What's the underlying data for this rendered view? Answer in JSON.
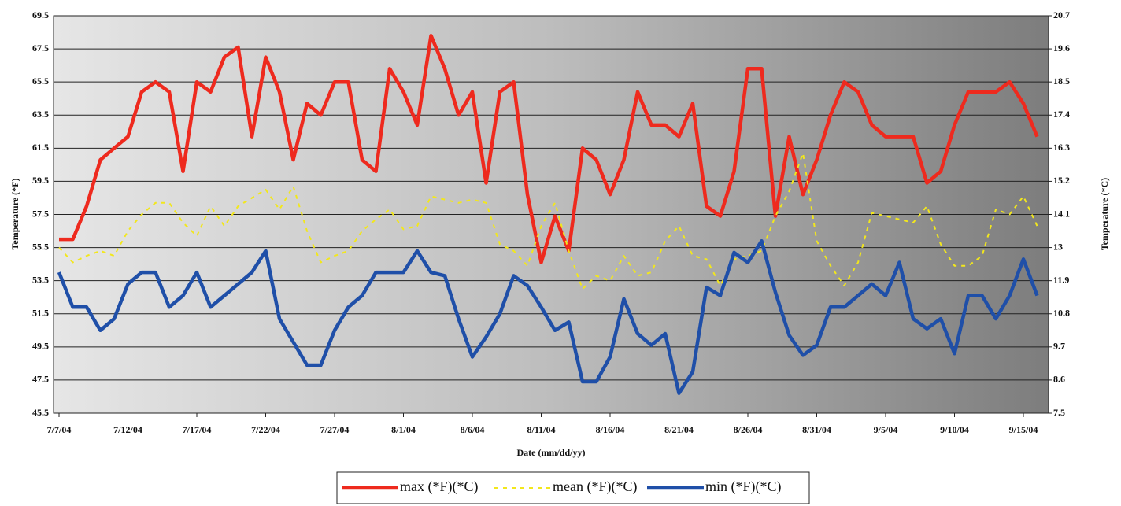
{
  "chart_data": {
    "type": "line",
    "xlabel": "Date (mm/dd/yy)",
    "ylabel": "Temperature (*F)",
    "y2label": "Temperature (*C)",
    "categories": [
      "7/7/04",
      null,
      null,
      null,
      null,
      "7/12/04",
      null,
      null,
      null,
      null,
      "7/17/04",
      null,
      null,
      null,
      null,
      "7/22/04",
      null,
      null,
      null,
      null,
      "7/27/04",
      null,
      null,
      null,
      null,
      "8/1/04",
      null,
      null,
      null,
      null,
      "8/6/04",
      null,
      null,
      null,
      null,
      "8/11/04",
      null,
      null,
      null,
      null,
      "8/16/04",
      null,
      null,
      null,
      null,
      "8/21/04",
      null,
      null,
      null,
      null,
      "8/26/04",
      null,
      null,
      null,
      null,
      "8/31/04",
      null,
      null,
      null,
      null,
      "9/5/04",
      null,
      null,
      null,
      null,
      "9/10/04",
      null,
      null,
      null,
      null,
      "9/15/04",
      null
    ],
    "series": [
      {
        "name": "max (*F)(*C)",
        "color": "#ee2a1e",
        "values": [
          56,
          56,
          58,
          60.8,
          61.5,
          62.2,
          64.9,
          65.5,
          64.9,
          60.1,
          65.5,
          64.9,
          67,
          67.6,
          62.2,
          67,
          64.9,
          60.8,
          64.2,
          63.5,
          65.5,
          65.5,
          60.8,
          60.1,
          66.3,
          64.9,
          62.9,
          68.3,
          66.3,
          63.5,
          64.9,
          59.4,
          64.9,
          65.5,
          58.7,
          54.6,
          57.4,
          55.3,
          61.5,
          60.8,
          58.7,
          60.8,
          64.9,
          62.9,
          62.9,
          62.2,
          64.2,
          58,
          57.4,
          60.1,
          66.3,
          66.3,
          57.4,
          62.2,
          58.7,
          60.8,
          63.5,
          65.5,
          64.9,
          62.9,
          62.2,
          62.2,
          62.2,
          59.4,
          60.1,
          62.9,
          64.9,
          64.9,
          64.9,
          65.5,
          64.2,
          62.2
        ]
      },
      {
        "name": "mean (*F)(*C)",
        "color": "#f2e71c",
        "values": [
          55.5,
          54.6,
          55.0,
          55.3,
          55.0,
          56.5,
          57.5,
          58.2,
          58.2,
          57.0,
          56.2,
          58.0,
          56.8,
          58.0,
          58.5,
          59.0,
          57.8,
          59.2,
          56.5,
          54.6,
          55.0,
          55.3,
          56.5,
          57.2,
          57.8,
          56.6,
          56.8,
          58.6,
          58.4,
          58.2,
          58.4,
          58.2,
          55.7,
          55.3,
          54.4,
          56.8,
          58.2,
          55.3,
          53.0,
          53.8,
          53.5,
          55.0,
          53.8,
          54.0,
          55.9,
          56.8,
          55.0,
          54.8,
          53.2,
          54.8,
          55.0,
          55.3,
          57.4,
          58.9,
          61.2,
          55.9,
          54.4,
          53.2,
          54.6,
          57.6,
          57.4,
          57.2,
          57.0,
          58.0,
          55.7,
          54.4,
          54.4,
          55.0,
          57.8,
          57.5,
          58.6,
          56.8
        ]
      },
      {
        "name": "min (*F)(*C)",
        "color": "#1f4fa8",
        "values": [
          54,
          51.9,
          51.9,
          50.5,
          51.2,
          53.3,
          54,
          54,
          51.9,
          52.6,
          54,
          51.9,
          52.6,
          53.3,
          54,
          55.3,
          51.2,
          49.8,
          48.4,
          48.4,
          50.5,
          51.9,
          52.6,
          54,
          54,
          54,
          55.3,
          54,
          53.8,
          51.2,
          48.9,
          50.1,
          51.5,
          53.8,
          53.2,
          51.9,
          50.5,
          51,
          47.4,
          47.4,
          48.9,
          52.4,
          50.3,
          49.6,
          50.3,
          46.7,
          48,
          53.1,
          52.6,
          55.2,
          54.6,
          55.9,
          52.8,
          50.2,
          49,
          49.6,
          51.9,
          51.9,
          52.6,
          53.3,
          52.6,
          54.6,
          51.2,
          50.6,
          51.2,
          49.1,
          52.6,
          52.6,
          51.2,
          52.6,
          54.8,
          52.6
        ]
      }
    ],
    "ylim": [
      45.5,
      69.5
    ],
    "yticks": [
      45.5,
      47.5,
      49.5,
      51.5,
      53.5,
      55.5,
      57.5,
      59.5,
      61.5,
      63.5,
      65.5,
      67.5,
      69.5
    ],
    "y2lim": [
      7.5,
      20.7
    ],
    "y2ticks": [
      7.5,
      8.6,
      9.7,
      10.8,
      11.9,
      13,
      14.1,
      15.2,
      16.3,
      17.4,
      18.5,
      19.6,
      20.7
    ],
    "grid": true,
    "legend": "bottom"
  }
}
